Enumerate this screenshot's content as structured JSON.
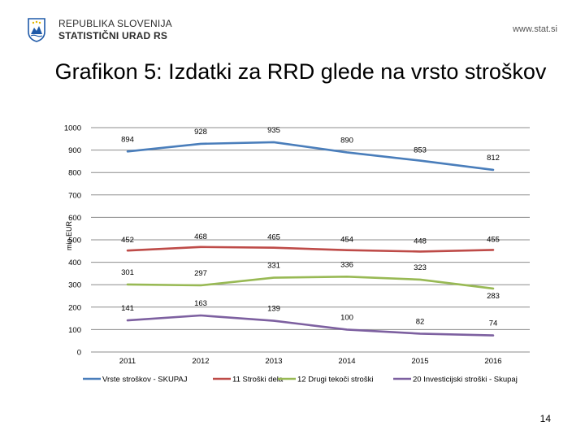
{
  "header": {
    "org_line1": "REPUBLIKA SLOVENIJA",
    "org_line2": "STATISTIČNI URAD RS",
    "site": "www.stat.si"
  },
  "page_number": "14",
  "colors": {
    "series1": "#4a7ebb",
    "series2": "#be4b48",
    "series3": "#98b954",
    "series4": "#7d60a0",
    "grid": "#8c8c8c"
  },
  "chart_data": {
    "type": "line",
    "title": "Grafikon 5: Izdatki za RRD glede na vrsto stroškov",
    "ylabel": "mio EUR",
    "xlabel": "",
    "ylim": [
      0,
      1000
    ],
    "yticks": [
      0,
      100,
      200,
      300,
      400,
      500,
      600,
      700,
      800,
      900,
      1000
    ],
    "grid": true,
    "legend": "bottom",
    "categories": [
      "2011",
      "2012",
      "2013",
      "2014",
      "2015",
      "2016"
    ],
    "series": [
      {
        "name": "Vrste stroškov - SKUPAJ",
        "values": [
          894,
          928,
          935,
          890,
          853,
          812
        ]
      },
      {
        "name": "11 Stroški dela",
        "values": [
          452,
          468,
          465,
          454,
          448,
          455
        ]
      },
      {
        "name": "12 Drugi tekoči stroški",
        "values": [
          301,
          297,
          331,
          336,
          323,
          283
        ]
      },
      {
        "name": "20 Investicijski stroški - Skupaj",
        "values": [
          141,
          163,
          139,
          100,
          82,
          74
        ]
      }
    ]
  }
}
